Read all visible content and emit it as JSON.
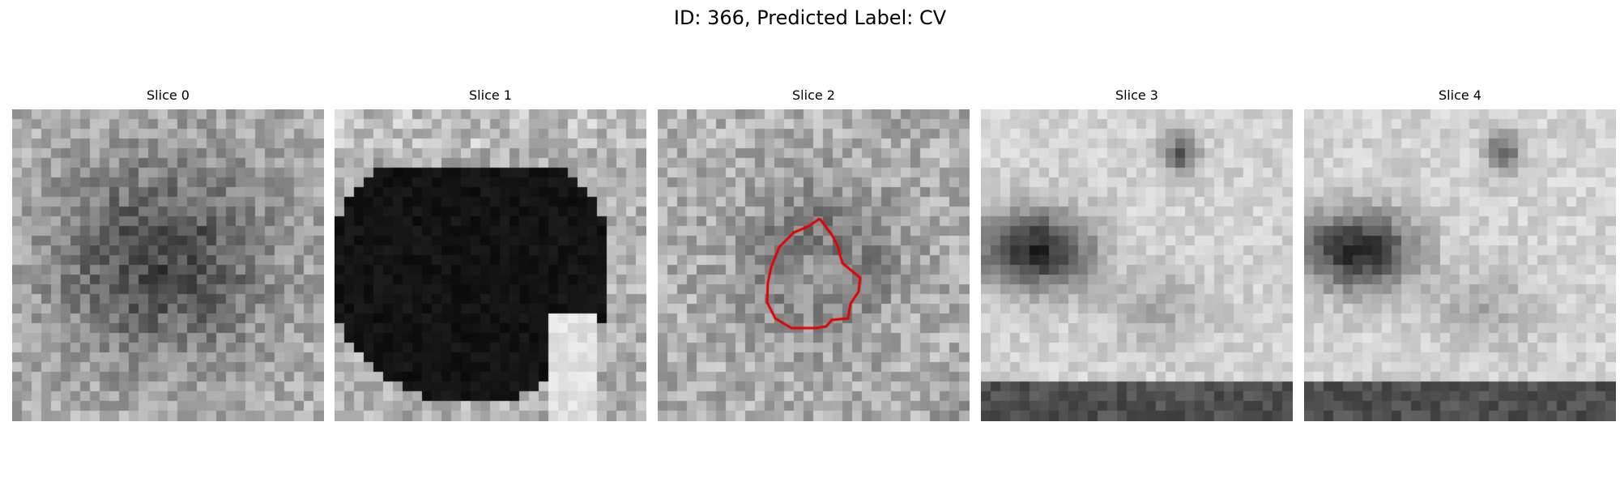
{
  "figure": {
    "title": "ID: 366, Predicted Label: CV",
    "slices": [
      {
        "title": "Slice 0",
        "pattern": "center-dark-blob"
      },
      {
        "title": "Slice 1",
        "pattern": "large-black-lesion"
      },
      {
        "title": "Slice 2",
        "pattern": "ring-lesion-with-contour"
      },
      {
        "title": "Slice 3",
        "pattern": "bright-with-dark-wedge"
      },
      {
        "title": "Slice 4",
        "pattern": "bright-with-dark-wedge"
      }
    ],
    "contour_color": "#e00000"
  }
}
